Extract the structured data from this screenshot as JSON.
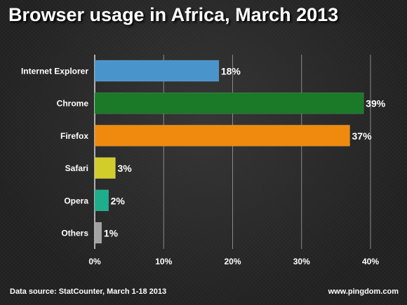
{
  "title": "Browser usage in Africa, March 2013",
  "footer": {
    "source": "Data source: StatCounter, March 1-18 2013",
    "site": "www.pingdom.com"
  },
  "chart_data": {
    "type": "bar",
    "orientation": "horizontal",
    "title": "Browser usage in Africa, March 2013",
    "categories": [
      "Internet Explorer",
      "Chrome",
      "Firefox",
      "Safari",
      "Opera",
      "Others"
    ],
    "values": [
      18,
      39,
      37,
      3,
      2,
      1
    ],
    "value_labels": [
      "18%",
      "39%",
      "37%",
      "3%",
      "2%",
      "1%"
    ],
    "colors": [
      "#4a94cc",
      "#1a7a28",
      "#f08a0e",
      "#d2cd2a",
      "#1fae8c",
      "#a3a3a3"
    ],
    "xlim": [
      0,
      40
    ],
    "xticks": [
      0,
      10,
      20,
      30,
      40
    ],
    "xtick_labels": [
      "0%",
      "10%",
      "20%",
      "30%",
      "40%"
    ],
    "grid": true,
    "legend": "none"
  }
}
